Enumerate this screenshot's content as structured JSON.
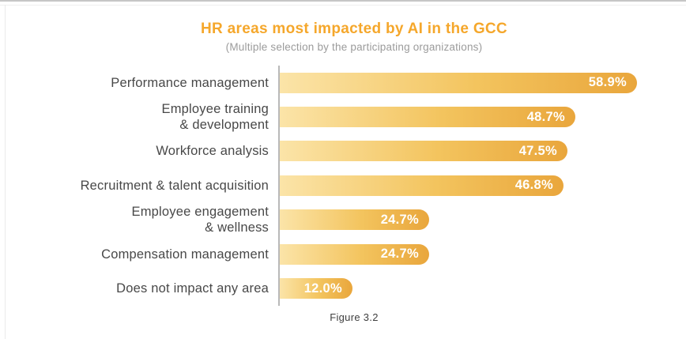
{
  "page": {
    "figure_caption": "Figure 3.2"
  },
  "chart_data": {
    "type": "bar",
    "orientation": "horizontal",
    "title": "HR areas most impacted by AI in the GCC",
    "subtitle": "(Multiple selection by the participating organizations)",
    "xlabel": "",
    "ylabel": "",
    "unit": "%",
    "xlim": [
      0,
      60
    ],
    "grid": false,
    "legend": false,
    "categories": [
      "Performance management",
      "Employee training & development",
      "Workforce analysis",
      "Recruitment & talent acquisition",
      "Employee engagement & wellness",
      "Compensation management",
      "Does not impact any area"
    ],
    "values": [
      58.9,
      48.7,
      47.5,
      46.8,
      24.7,
      24.7,
      12.0
    ],
    "items": [
      {
        "label": "Performance management",
        "value": 58.9,
        "value_label": "58.9%"
      },
      {
        "label": "Employee training\n& development",
        "value": 48.7,
        "value_label": "48.7%"
      },
      {
        "label": "Workforce analysis",
        "value": 47.5,
        "value_label": "47.5%"
      },
      {
        "label": "Recruitment & talent acquisition",
        "value": 46.8,
        "value_label": "46.8%"
      },
      {
        "label": "Employee engagement\n& wellness",
        "value": 24.7,
        "value_label": "24.7%"
      },
      {
        "label": "Compensation management",
        "value": 24.7,
        "value_label": "24.7%"
      },
      {
        "label": "Does not impact any area",
        "value": 12.0,
        "value_label": "12.0%"
      }
    ],
    "colors": {
      "title_text": "#f5a72b",
      "subtitle_text": "#9b9b9b",
      "bar_gradient_start": "#fbe4a8",
      "bar_gradient_mid": "#f3c45e",
      "bar_gradient_end": "#e9a63c",
      "category_text": "#484848",
      "value_text": "#ffffff",
      "axis_line": "#b9b9b9",
      "caption_text": "#3f3f3f"
    }
  }
}
